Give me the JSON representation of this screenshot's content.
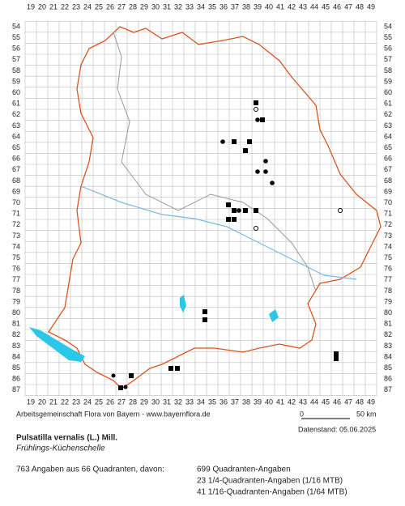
{
  "grid": {
    "columns": [
      "19",
      "20",
      "21",
      "22",
      "23",
      "24",
      "25",
      "26",
      "27",
      "28",
      "29",
      "30",
      "31",
      "32",
      "33",
      "34",
      "35",
      "36",
      "37",
      "38",
      "39",
      "40",
      "41",
      "42",
      "43",
      "44",
      "45",
      "46",
      "47",
      "48",
      "49"
    ],
    "rows": [
      "54",
      "55",
      "56",
      "57",
      "58",
      "59",
      "60",
      "61",
      "62",
      "63",
      "64",
      "65",
      "66",
      "67",
      "68",
      "69",
      "70",
      "71",
      "72",
      "73",
      "74",
      "75",
      "76",
      "77",
      "78",
      "79",
      "80",
      "81",
      "82",
      "83",
      "84",
      "85",
      "86",
      "87"
    ]
  },
  "footer": {
    "credit": "Arbeitsgemeinschaft Flora von Bayern - www.bayernflora.de",
    "scale_start": "0",
    "scale_end": "50 km",
    "date": "Datenstand: 05.06.2025"
  },
  "species": {
    "name": "Pulsatilla vernalis (L.) Mill.",
    "common_name": "Frühlings-Küchenschelle"
  },
  "stats": {
    "summary": "763 Angaben aus 66 Quadranten, davon:",
    "lines": [
      "699 Quadranten-Angaben",
      "23 1/4-Quadranten-Angaben (1/16 MTB)",
      "41 1/16-Quadranten-Angaben (1/64 MTB)"
    ]
  }
}
